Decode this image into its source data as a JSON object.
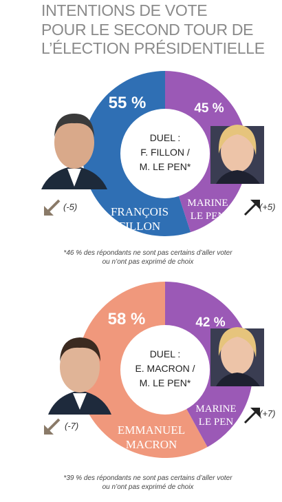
{
  "title_lines": [
    "INTENTIONS DE VOTE",
    "POUR LE SECOND TOUR DE",
    "L’ÉLECTION PRÉSIDENTIELLE"
  ],
  "colors": {
    "blue": "#2f6fb4",
    "purple": "#9b59b6",
    "salmon": "#f0987c",
    "arrow_up": "#222222",
    "arrow_down": "#8a7a68"
  },
  "chart_data": [
    {
      "type": "pie",
      "variant": "donut",
      "slices": [
        {
          "label_lines": [
            "FRANÇOIS",
            "FILLON"
          ],
          "value": 55,
          "value_label": "55 %",
          "color": "#2f6fb4",
          "trend": "(-5)",
          "trend_dir": "down"
        },
        {
          "label_lines": [
            "MARINE",
            "LE PEN"
          ],
          "value": 45,
          "value_label": "45 %",
          "color": "#9b59b6",
          "trend": "(+5)",
          "trend_dir": "up"
        }
      ],
      "center_lines": [
        "DUEL :",
        "F. FILLON /",
        "M. LE PEN*"
      ],
      "footnote_lines": [
        "*46 % des répondants ne sont pas certains d’aller voter",
        "ou n’ont pas exprimé de choix"
      ]
    },
    {
      "type": "pie",
      "variant": "donut",
      "slices": [
        {
          "label_lines": [
            "EMMANUEL",
            "MACRON"
          ],
          "value": 58,
          "value_label": "58 %",
          "color": "#f0987c",
          "trend": "(-7)",
          "trend_dir": "down"
        },
        {
          "label_lines": [
            "MARINE",
            "LE PEN"
          ],
          "value": 42,
          "value_label": "42 %",
          "color": "#9b59b6",
          "trend": "(+7)",
          "trend_dir": "up"
        }
      ],
      "center_lines": [
        "DUEL :",
        "E. MACRON /",
        "M. LE PEN*"
      ],
      "footnote_lines": [
        "*39 % des répondants ne sont pas certains d’aller voter",
        "ou n’ont pas exprimé de choix"
      ]
    }
  ]
}
